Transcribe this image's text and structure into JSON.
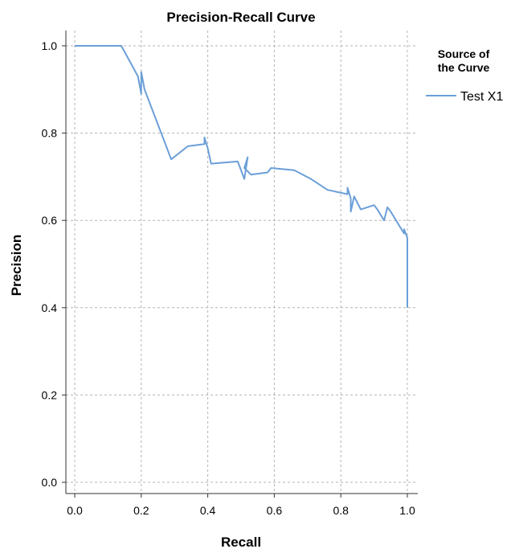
{
  "chart_data": {
    "type": "line",
    "title": "Precision-Recall Curve",
    "xlabel": "Recall",
    "ylabel": "Precision",
    "xlim": [
      0.0,
      1.0
    ],
    "ylim": [
      0.0,
      1.0
    ],
    "x_ticks": [
      "0.0",
      "0.2",
      "0.4",
      "0.6",
      "0.8",
      "1.0"
    ],
    "y_ticks": [
      "0.0",
      "0.2",
      "0.4",
      "0.6",
      "0.8",
      "1.0"
    ],
    "grid": true,
    "legend": {
      "title_line1": "Source of",
      "title_line2": "the Curve",
      "placement": "right"
    },
    "series": [
      {
        "name": "Test X1",
        "color": "#6b9fd8",
        "x": [
          0.0,
          0.14,
          0.19,
          0.2,
          0.2,
          0.21,
          0.29,
          0.34,
          0.39,
          0.39,
          0.4,
          0.41,
          0.49,
          0.51,
          0.52,
          0.51,
          0.53,
          0.58,
          0.59,
          0.66,
          0.71,
          0.76,
          0.82,
          0.82,
          0.83,
          0.83,
          0.84,
          0.86,
          0.9,
          0.91,
          0.93,
          0.94,
          0.95,
          0.99,
          0.99,
          1.0,
          1.0
        ],
        "y": [
          1.0,
          1.0,
          0.93,
          0.89,
          0.94,
          0.9,
          0.74,
          0.77,
          0.775,
          0.79,
          0.765,
          0.73,
          0.735,
          0.695,
          0.745,
          0.72,
          0.705,
          0.71,
          0.72,
          0.715,
          0.695,
          0.67,
          0.66,
          0.675,
          0.65,
          0.62,
          0.655,
          0.625,
          0.635,
          0.625,
          0.6,
          0.63,
          0.62,
          0.57,
          0.58,
          0.56,
          0.4
        ]
      }
    ]
  }
}
